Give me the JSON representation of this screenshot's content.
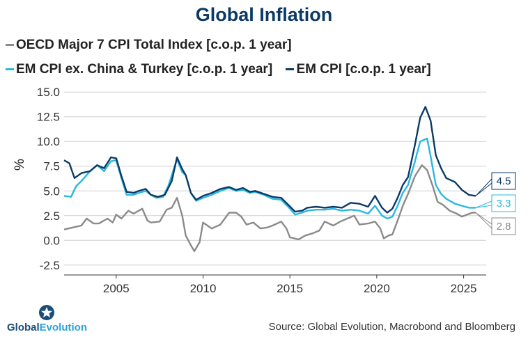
{
  "chart_data": {
    "type": "line",
    "title": "Global Inflation",
    "ylabel": "%",
    "xlabel": "",
    "ylim": [
      -3.5,
      16
    ],
    "xlim": [
      2002.0,
      2026.3
    ],
    "yticks": [
      "15.0",
      "12.5",
      "10.0",
      "7.5",
      "5.0",
      "2.5",
      "0.0",
      "-2.5"
    ],
    "ytick_values": [
      15,
      12.5,
      10,
      7.5,
      5,
      2.5,
      0,
      -2.5
    ],
    "xticks": [
      "2005",
      "2010",
      "2015",
      "2020",
      "2025"
    ],
    "xtick_values": [
      2005,
      2010,
      2015,
      2020,
      2025
    ],
    "grid": true,
    "legend_position": "top",
    "series": [
      {
        "name": "OECD Major 7 CPI Total Index [c.o.p. 1 year]",
        "color": "#8a8a8a",
        "end_label": "2.8",
        "points": [
          [
            2002.0,
            1.1
          ],
          [
            2002.5,
            1.3
          ],
          [
            2003.0,
            1.5
          ],
          [
            2003.3,
            2.2
          ],
          [
            2003.7,
            1.7
          ],
          [
            2004.0,
            1.7
          ],
          [
            2004.5,
            2.2
          ],
          [
            2004.8,
            1.8
          ],
          [
            2005.0,
            2.6
          ],
          [
            2005.3,
            2.2
          ],
          [
            2005.7,
            3.0
          ],
          [
            2006.0,
            2.7
          ],
          [
            2006.5,
            3.2
          ],
          [
            2006.8,
            2.0
          ],
          [
            2007.0,
            1.8
          ],
          [
            2007.5,
            1.9
          ],
          [
            2007.9,
            3.1
          ],
          [
            2008.2,
            3.3
          ],
          [
            2008.5,
            4.3
          ],
          [
            2008.8,
            2.5
          ],
          [
            2009.0,
            0.5
          ],
          [
            2009.3,
            -0.5
          ],
          [
            2009.5,
            -1.1
          ],
          [
            2009.8,
            -0.2
          ],
          [
            2010.0,
            1.8
          ],
          [
            2010.5,
            1.2
          ],
          [
            2011.0,
            1.6
          ],
          [
            2011.5,
            2.8
          ],
          [
            2011.9,
            2.8
          ],
          [
            2012.2,
            2.4
          ],
          [
            2012.5,
            1.6
          ],
          [
            2012.9,
            1.8
          ],
          [
            2013.3,
            1.2
          ],
          [
            2013.7,
            1.3
          ],
          [
            2014.0,
            1.5
          ],
          [
            2014.5,
            1.9
          ],
          [
            2014.8,
            1.2
          ],
          [
            2015.0,
            0.3
          ],
          [
            2015.5,
            0.1
          ],
          [
            2015.9,
            0.5
          ],
          [
            2016.3,
            0.7
          ],
          [
            2016.7,
            1.0
          ],
          [
            2017.0,
            1.9
          ],
          [
            2017.5,
            1.5
          ],
          [
            2017.9,
            1.9
          ],
          [
            2018.3,
            2.2
          ],
          [
            2018.7,
            2.5
          ],
          [
            2019.0,
            1.6
          ],
          [
            2019.5,
            1.7
          ],
          [
            2019.9,
            1.9
          ],
          [
            2020.2,
            1.2
          ],
          [
            2020.4,
            0.2
          ],
          [
            2020.7,
            0.5
          ],
          [
            2020.9,
            0.6
          ],
          [
            2021.2,
            2.0
          ],
          [
            2021.5,
            3.5
          ],
          [
            2021.8,
            4.7
          ],
          [
            2022.2,
            6.5
          ],
          [
            2022.6,
            7.6
          ],
          [
            2022.9,
            7.1
          ],
          [
            2023.2,
            5.6
          ],
          [
            2023.5,
            3.9
          ],
          [
            2023.8,
            3.6
          ],
          [
            2024.2,
            3.0
          ],
          [
            2024.6,
            2.7
          ],
          [
            2024.9,
            2.4
          ],
          [
            2025.2,
            2.6
          ],
          [
            2025.5,
            2.8
          ],
          [
            2025.7,
            2.8
          ]
        ]
      },
      {
        "name": "EM CPI ex. China & Turkey [c.o.p. 1 year]",
        "color": "#2ab8e0",
        "end_label": "3.3",
        "points": [
          [
            2002.0,
            4.5
          ],
          [
            2002.4,
            4.4
          ],
          [
            2002.7,
            5.5
          ],
          [
            2003.0,
            6.0
          ],
          [
            2003.5,
            7.0
          ],
          [
            2003.9,
            7.6
          ],
          [
            2004.3,
            7.0
          ],
          [
            2004.7,
            8.0
          ],
          [
            2005.0,
            8.1
          ],
          [
            2005.3,
            6.3
          ],
          [
            2005.6,
            4.6
          ],
          [
            2006.0,
            4.6
          ],
          [
            2006.3,
            4.8
          ],
          [
            2006.7,
            5.0
          ],
          [
            2007.0,
            4.6
          ],
          [
            2007.3,
            4.3
          ],
          [
            2007.7,
            4.4
          ],
          [
            2008.0,
            5.5
          ],
          [
            2008.5,
            8.2
          ],
          [
            2008.8,
            6.9
          ],
          [
            2009.0,
            6.6
          ],
          [
            2009.3,
            4.8
          ],
          [
            2009.6,
            4.0
          ],
          [
            2010.0,
            4.3
          ],
          [
            2010.5,
            4.6
          ],
          [
            2011.0,
            5.0
          ],
          [
            2011.5,
            5.3
          ],
          [
            2011.9,
            5.0
          ],
          [
            2012.3,
            5.1
          ],
          [
            2012.7,
            4.8
          ],
          [
            2013.0,
            4.9
          ],
          [
            2013.5,
            4.6
          ],
          [
            2014.0,
            4.2
          ],
          [
            2014.5,
            4.1
          ],
          [
            2014.9,
            3.4
          ],
          [
            2015.3,
            2.6
          ],
          [
            2015.7,
            2.8
          ],
          [
            2016.0,
            3.0
          ],
          [
            2016.5,
            3.1
          ],
          [
            2017.0,
            3.1
          ],
          [
            2017.5,
            3.2
          ],
          [
            2018.0,
            3.0
          ],
          [
            2018.5,
            3.1
          ],
          [
            2019.0,
            3.0
          ],
          [
            2019.5,
            2.7
          ],
          [
            2019.9,
            3.5
          ],
          [
            2020.3,
            2.5
          ],
          [
            2020.6,
            2.2
          ],
          [
            2020.9,
            2.4
          ],
          [
            2021.2,
            3.5
          ],
          [
            2021.5,
            4.8
          ],
          [
            2021.8,
            5.6
          ],
          [
            2022.2,
            8.0
          ],
          [
            2022.5,
            10.0
          ],
          [
            2022.9,
            10.3
          ],
          [
            2023.1,
            8.5
          ],
          [
            2023.4,
            5.6
          ],
          [
            2023.7,
            4.7
          ],
          [
            2024.0,
            4.2
          ],
          [
            2024.5,
            3.7
          ],
          [
            2024.9,
            3.5
          ],
          [
            2025.3,
            3.3
          ],
          [
            2025.7,
            3.3
          ]
        ]
      },
      {
        "name": "EM CPI [c.o.p. 1 year]",
        "color": "#0b3a66",
        "end_label": "4.5",
        "points": [
          [
            2002.0,
            8.1
          ],
          [
            2002.3,
            7.8
          ],
          [
            2002.6,
            6.3
          ],
          [
            2003.0,
            6.8
          ],
          [
            2003.5,
            7.0
          ],
          [
            2003.9,
            7.6
          ],
          [
            2004.3,
            7.3
          ],
          [
            2004.7,
            8.4
          ],
          [
            2005.0,
            8.3
          ],
          [
            2005.3,
            6.5
          ],
          [
            2005.6,
            4.9
          ],
          [
            2006.0,
            4.8
          ],
          [
            2006.3,
            5.0
          ],
          [
            2006.7,
            5.2
          ],
          [
            2007.0,
            4.6
          ],
          [
            2007.4,
            4.4
          ],
          [
            2007.8,
            4.6
          ],
          [
            2008.2,
            6.0
          ],
          [
            2008.5,
            8.4
          ],
          [
            2008.8,
            7.2
          ],
          [
            2009.0,
            6.6
          ],
          [
            2009.3,
            4.8
          ],
          [
            2009.6,
            4.1
          ],
          [
            2010.0,
            4.5
          ],
          [
            2010.5,
            4.8
          ],
          [
            2011.0,
            5.2
          ],
          [
            2011.5,
            5.4
          ],
          [
            2011.9,
            5.1
          ],
          [
            2012.3,
            5.3
          ],
          [
            2012.7,
            4.9
          ],
          [
            2013.0,
            5.0
          ],
          [
            2013.5,
            4.7
          ],
          [
            2014.0,
            4.4
          ],
          [
            2014.5,
            4.3
          ],
          [
            2014.9,
            3.6
          ],
          [
            2015.3,
            2.9
          ],
          [
            2015.7,
            3.0
          ],
          [
            2016.0,
            3.3
          ],
          [
            2016.5,
            3.4
          ],
          [
            2017.0,
            3.3
          ],
          [
            2017.5,
            3.4
          ],
          [
            2018.0,
            3.3
          ],
          [
            2018.5,
            3.8
          ],
          [
            2019.0,
            3.7
          ],
          [
            2019.5,
            3.4
          ],
          [
            2019.9,
            4.5
          ],
          [
            2020.3,
            3.3
          ],
          [
            2020.6,
            2.8
          ],
          [
            2020.9,
            3.2
          ],
          [
            2021.2,
            4.3
          ],
          [
            2021.5,
            5.6
          ],
          [
            2021.8,
            6.4
          ],
          [
            2022.2,
            9.7
          ],
          [
            2022.5,
            12.4
          ],
          [
            2022.8,
            13.5
          ],
          [
            2023.1,
            12.1
          ],
          [
            2023.4,
            8.6
          ],
          [
            2023.7,
            7.3
          ],
          [
            2024.0,
            6.3
          ],
          [
            2024.5,
            5.9
          ],
          [
            2024.9,
            5.1
          ],
          [
            2025.3,
            4.6
          ],
          [
            2025.7,
            4.5
          ]
        ]
      }
    ]
  },
  "source": "Source: Global Evolution, Macrobond and Bloomberg",
  "logo": {
    "part1": "Global",
    "part2": "Evolution"
  }
}
